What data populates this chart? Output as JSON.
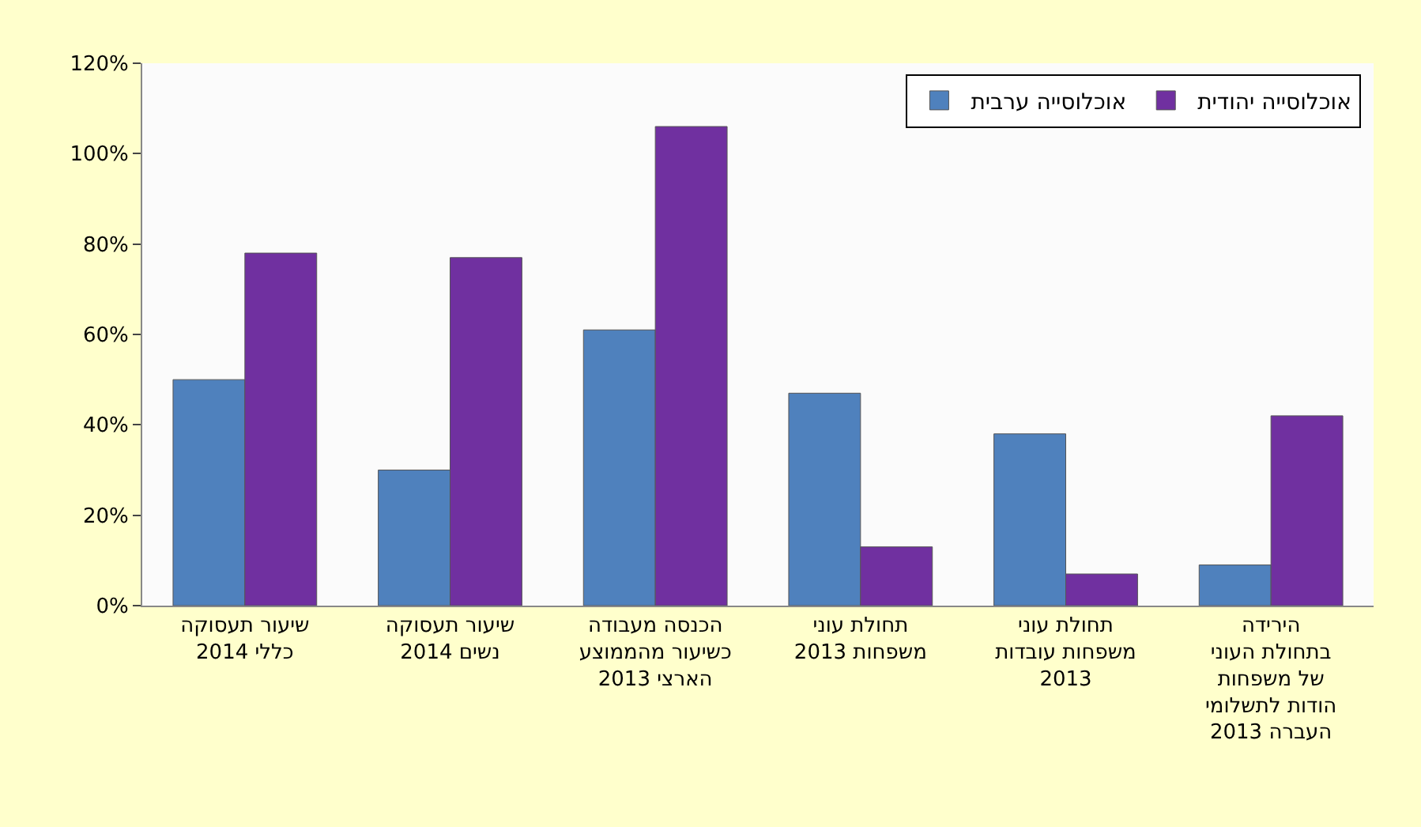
{
  "chart_data": {
    "type": "bar",
    "categories": [
      "שיעור תעסוקה\nכללי 2014",
      "שיעור תעסוקה\nנשים 2014",
      "הכנסה מעבודה\nכשיעור מהממוצע\nהארצי 2013",
      "תחולת עוני\nמשפחות 2013",
      "תחולת עוני\nמשפחות עובדות\n2013",
      "הירידה\nבתחולת העוני\nשל משפחות\nהודות לתשלומי\nהעברה 2013"
    ],
    "series": [
      {
        "name": "אוכלוסייה ערבית",
        "color": "#4f81bd",
        "values": [
          50,
          30,
          61,
          47,
          38,
          9
        ]
      },
      {
        "name": "אוכלוסייה יהודית",
        "color": "#7030a0",
        "values": [
          78,
          77,
          106,
          13,
          7,
          42
        ]
      }
    ],
    "ylim": [
      0,
      120
    ],
    "yticks": [
      {
        "value": 0,
        "label": "0%"
      },
      {
        "value": 20,
        "label": "20%"
      },
      {
        "value": 40,
        "label": "40%"
      },
      {
        "value": 60,
        "label": "60%"
      },
      {
        "value": 80,
        "label": "80%"
      },
      {
        "value": 100,
        "label": "100%"
      },
      {
        "value": 120,
        "label": "120%"
      }
    ],
    "grid": false,
    "legend": "top right"
  }
}
